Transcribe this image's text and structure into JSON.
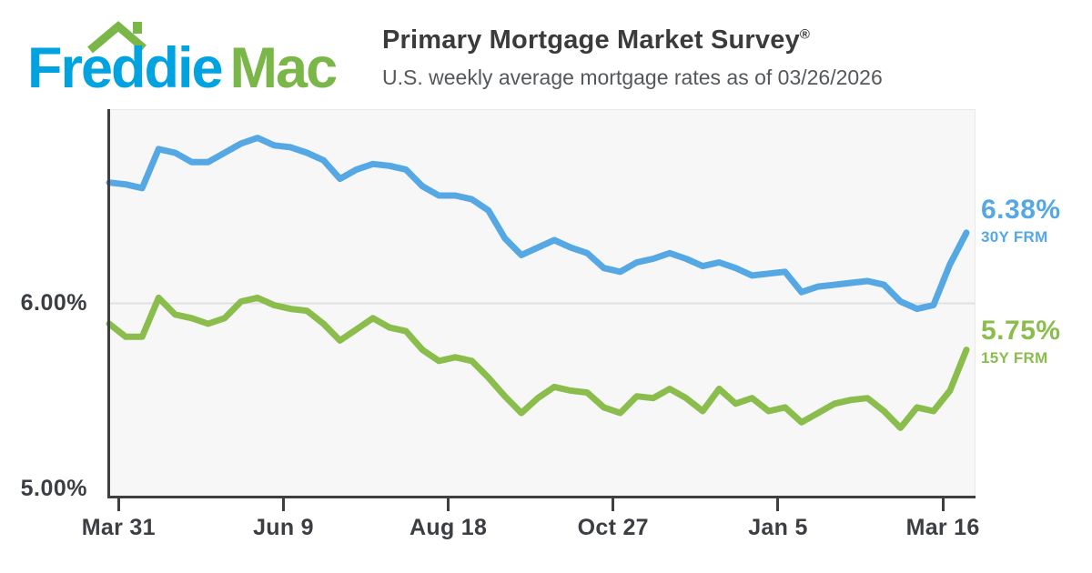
{
  "header": {
    "logo": {
      "word1": "Freddie",
      "word2": "Mac"
    },
    "title": "Primary Mortgage Market Survey",
    "title_reg_mark": "®",
    "subtitle": "U.S. weekly average mortgage rates as of 03/26/2026"
  },
  "colors": {
    "logo_blue": "#00a3e0",
    "logo_green": "#7ab648",
    "line_30y": "#55a8e3",
    "line_15y": "#8bbd4d",
    "axis": "#3f3f3f",
    "gridline": "#e0e0e0",
    "plot_background": "#f7f7f7"
  },
  "chart_data": {
    "type": "line",
    "title": "Primary Mortgage Market Survey",
    "subtitle": "U.S. weekly average mortgage rates as of 03/26/2026",
    "xlabel": "",
    "ylabel": "",
    "grid": "single horizontal gridline at 6.00%",
    "legend_position": "right-of-line-ends",
    "ylim": [
      4.96,
      7.04
    ],
    "y_ticks": [
      {
        "label": "6.00%",
        "value": 6.0
      },
      {
        "label": "5.00%",
        "value": 5.0
      }
    ],
    "y_gridlines": [
      6.0
    ],
    "weeks_total": 52,
    "x_ticks": [
      {
        "label": "Mar 31",
        "week": 0.57
      },
      {
        "label": "Jun 9",
        "week": 10.57
      },
      {
        "label": "Aug 18",
        "week": 20.57
      },
      {
        "label": "Oct 27",
        "week": 30.57
      },
      {
        "label": "Jan 5",
        "week": 40.57
      },
      {
        "label": "Mar 16",
        "week": 50.57
      }
    ],
    "series": [
      {
        "name": "30Y FRM",
        "end_label": "6.38%",
        "color": "#55a8e3",
        "values": [
          6.65,
          6.64,
          6.62,
          6.83,
          6.81,
          6.76,
          6.76,
          6.81,
          6.86,
          6.89,
          6.85,
          6.84,
          6.81,
          6.77,
          6.67,
          6.72,
          6.75,
          6.74,
          6.72,
          6.63,
          6.58,
          6.58,
          6.56,
          6.5,
          6.35,
          6.26,
          6.3,
          6.34,
          6.3,
          6.27,
          6.19,
          6.17,
          6.22,
          6.24,
          6.27,
          6.24,
          6.2,
          6.22,
          6.19,
          6.15,
          6.16,
          6.17,
          6.06,
          6.09,
          6.1,
          6.11,
          6.12,
          6.1,
          6.01,
          5.97,
          5.99,
          6.21,
          6.38
        ]
      },
      {
        "name": "15Y FRM",
        "end_label": "5.75%",
        "color": "#8bbd4d",
        "values": [
          5.89,
          5.82,
          5.82,
          6.03,
          5.94,
          5.92,
          5.89,
          5.92,
          6.01,
          6.03,
          5.99,
          5.97,
          5.96,
          5.89,
          5.8,
          5.86,
          5.92,
          5.87,
          5.85,
          5.75,
          5.69,
          5.71,
          5.69,
          5.6,
          5.5,
          5.41,
          5.49,
          5.55,
          5.53,
          5.52,
          5.44,
          5.41,
          5.5,
          5.49,
          5.54,
          5.49,
          5.42,
          5.54,
          5.46,
          5.49,
          5.42,
          5.44,
          5.36,
          5.41,
          5.46,
          5.48,
          5.49,
          5.42,
          5.33,
          5.44,
          5.42,
          5.53,
          5.75
        ]
      }
    ]
  }
}
